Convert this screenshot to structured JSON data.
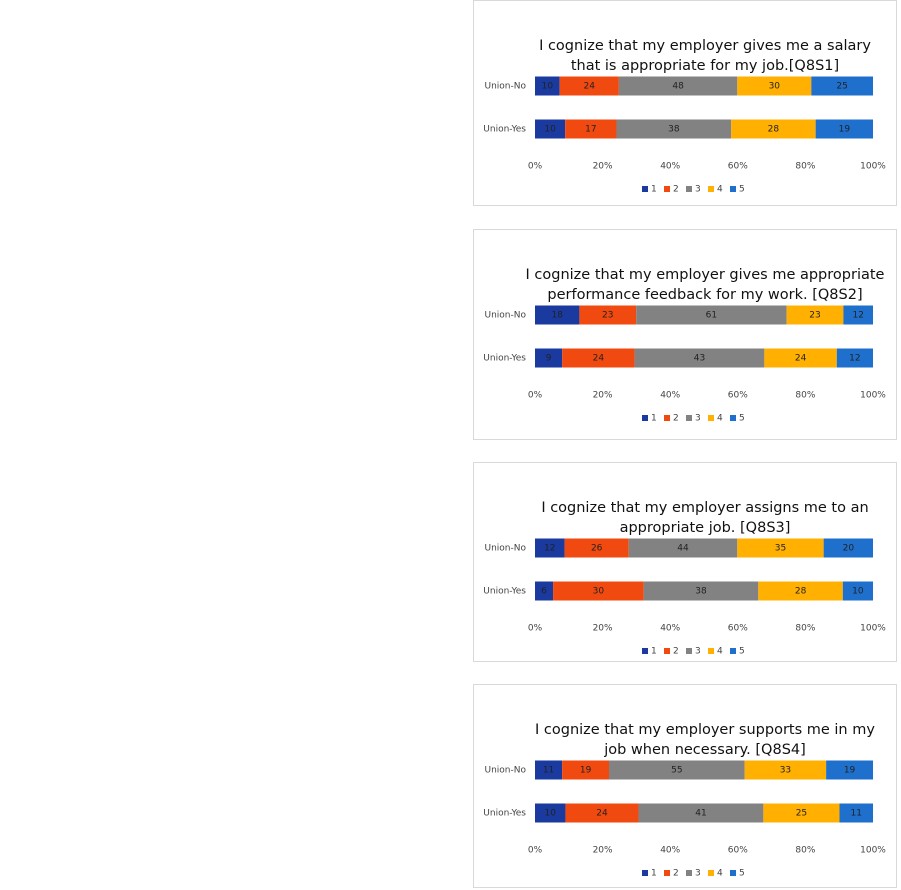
{
  "chart_data": [
    {
      "type": "bar",
      "orientation": "horizontal",
      "stacked": "percent",
      "title": "I cognize that my employer gives me a salary that is appropriate for my job.[Q8S1]",
      "categories": [
        "Union-No",
        "Union-Yes"
      ],
      "series": [
        {
          "name": "1",
          "color": "#1a3a9f",
          "values": [
            10,
            10
          ]
        },
        {
          "name": "2",
          "color": "#f04a10",
          "values": [
            24,
            17
          ]
        },
        {
          "name": "3",
          "color": "#828282",
          "values": [
            48,
            38
          ]
        },
        {
          "name": "4",
          "color": "#ffb000",
          "values": [
            30,
            28
          ]
        },
        {
          "name": "5",
          "color": "#1f6fcc",
          "values": [
            25,
            19
          ]
        }
      ],
      "xlim": [
        0,
        100
      ],
      "xticks": [
        {
          "value": 0,
          "label": "0%"
        },
        {
          "value": 20,
          "label": "20%"
        },
        {
          "value": 40,
          "label": "40%"
        },
        {
          "value": 60,
          "label": "60%"
        },
        {
          "value": 80,
          "label": "80%"
        },
        {
          "value": 100,
          "label": "100%"
        }
      ],
      "legend": "bottom"
    },
    {
      "type": "bar",
      "orientation": "horizontal",
      "stacked": "percent",
      "title": "I cognize that my employer gives me appropriate performance feedback for my work. [Q8S2]",
      "categories": [
        "Union-No",
        "Union-Yes"
      ],
      "series": [
        {
          "name": "1",
          "color": "#1a3a9f",
          "values": [
            18,
            9
          ]
        },
        {
          "name": "2",
          "color": "#f04a10",
          "values": [
            23,
            24
          ]
        },
        {
          "name": "3",
          "color": "#828282",
          "values": [
            61,
            43
          ]
        },
        {
          "name": "4",
          "color": "#ffb000",
          "values": [
            23,
            24
          ]
        },
        {
          "name": "5",
          "color": "#1f6fcc",
          "values": [
            12,
            12
          ]
        }
      ],
      "xlim": [
        0,
        100
      ],
      "xticks": [
        {
          "value": 0,
          "label": "0%"
        },
        {
          "value": 20,
          "label": "20%"
        },
        {
          "value": 40,
          "label": "40%"
        },
        {
          "value": 60,
          "label": "60%"
        },
        {
          "value": 80,
          "label": "80%"
        },
        {
          "value": 100,
          "label": "100%"
        }
      ],
      "legend": "bottom"
    },
    {
      "type": "bar",
      "orientation": "horizontal",
      "stacked": "percent",
      "title": "I cognize that my employer assigns me to an appropriate job. [Q8S3]",
      "categories": [
        "Union-No",
        "Union-Yes"
      ],
      "series": [
        {
          "name": "1",
          "color": "#1a3a9f",
          "values": [
            12,
            6
          ]
        },
        {
          "name": "2",
          "color": "#f04a10",
          "values": [
            26,
            30
          ]
        },
        {
          "name": "3",
          "color": "#828282",
          "values": [
            44,
            38
          ]
        },
        {
          "name": "4",
          "color": "#ffb000",
          "values": [
            35,
            28
          ]
        },
        {
          "name": "5",
          "color": "#1f6fcc",
          "values": [
            20,
            10
          ]
        }
      ],
      "xlim": [
        0,
        100
      ],
      "xticks": [
        {
          "value": 0,
          "label": "0%"
        },
        {
          "value": 20,
          "label": "20%"
        },
        {
          "value": 40,
          "label": "40%"
        },
        {
          "value": 60,
          "label": "60%"
        },
        {
          "value": 80,
          "label": "80%"
        },
        {
          "value": 100,
          "label": "100%"
        }
      ],
      "legend": "bottom"
    },
    {
      "type": "bar",
      "orientation": "horizontal",
      "stacked": "percent",
      "title": "I cognize that my employer supports me in my job when necessary. [Q8S4]",
      "categories": [
        "Union-No",
        "Union-Yes"
      ],
      "series": [
        {
          "name": "1",
          "color": "#1a3a9f",
          "values": [
            11,
            10
          ]
        },
        {
          "name": "2",
          "color": "#f04a10",
          "values": [
            19,
            24
          ]
        },
        {
          "name": "3",
          "color": "#828282",
          "values": [
            55,
            41
          ]
        },
        {
          "name": "4",
          "color": "#ffb000",
          "values": [
            33,
            25
          ]
        },
        {
          "name": "5",
          "color": "#1f6fcc",
          "values": [
            19,
            11
          ]
        }
      ],
      "xlim": [
        0,
        100
      ],
      "xticks": [
        {
          "value": 0,
          "label": "0%"
        },
        {
          "value": 20,
          "label": "20%"
        },
        {
          "value": 40,
          "label": "40%"
        },
        {
          "value": 60,
          "label": "60%"
        },
        {
          "value": 80,
          "label": "80%"
        },
        {
          "value": 100,
          "label": "100%"
        }
      ],
      "legend": "bottom"
    }
  ]
}
